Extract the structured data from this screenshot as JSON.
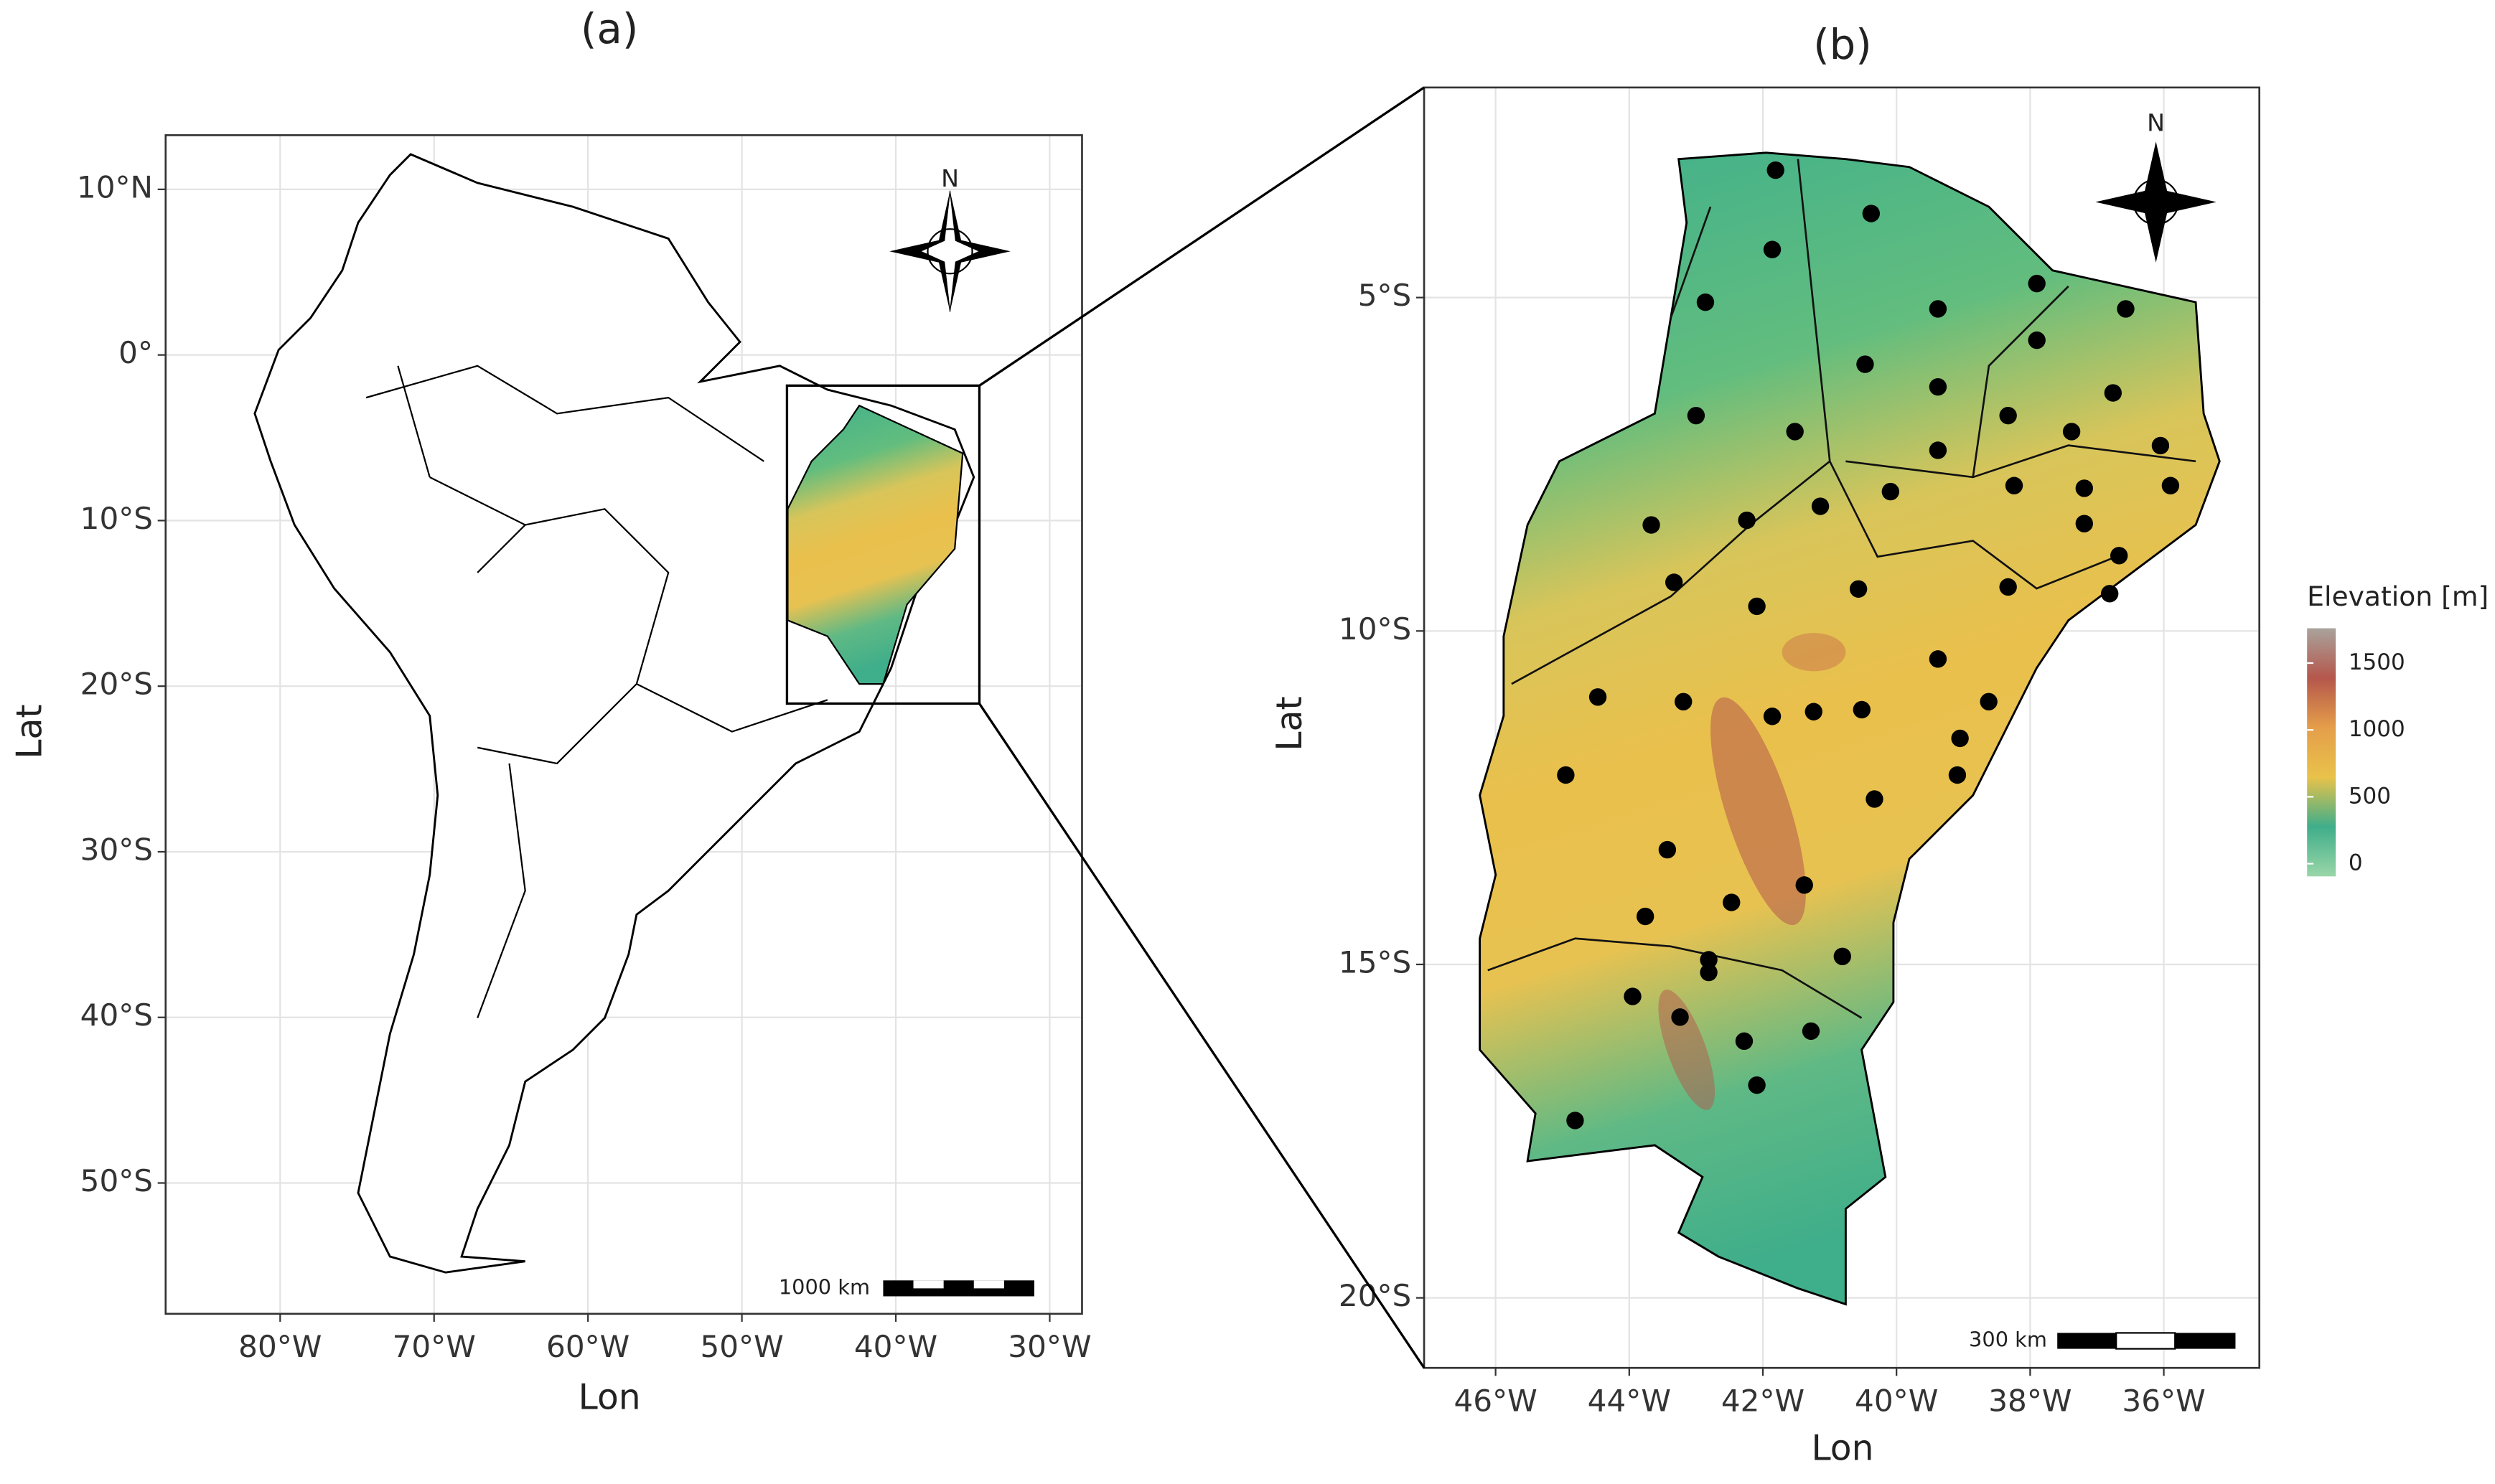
{
  "chart_data": [
    {
      "type": "map",
      "title": "(a)",
      "x_label": "Lon",
      "y_label": "Lat",
      "xlim": [
        -87.44,
        -27.9
      ],
      "ylim": [
        -57.9,
        13.27
      ],
      "xticks": [
        {
          "value": -80,
          "label": "80°W"
        },
        {
          "value": -70,
          "label": "70°W"
        },
        {
          "value": -60,
          "label": "60°W"
        },
        {
          "value": -50,
          "label": "50°W"
        },
        {
          "value": -40,
          "label": "40°W"
        },
        {
          "value": -30,
          "label": "30°W"
        }
      ],
      "yticks": [
        {
          "value": 10,
          "label": "10°N"
        },
        {
          "value": 0,
          "label": "0°"
        },
        {
          "value": -10,
          "label": "10°S"
        },
        {
          "value": -20,
          "label": "20°S"
        },
        {
          "value": -30,
          "label": "30°S"
        },
        {
          "value": -40,
          "label": "40°S"
        },
        {
          "value": -50,
          "label": "50°S"
        }
      ],
      "grid": true,
      "north_label": "N",
      "scale_bar_label": "1000 km"
    },
    {
      "type": "map",
      "title": "(b)",
      "x_label": "Lon",
      "y_label": "Lat",
      "xlim": [
        -47.07,
        -34.57
      ],
      "ylim": [
        -21.05,
        -1.85
      ],
      "xticks": [
        {
          "value": -46,
          "label": "46°W"
        },
        {
          "value": -44,
          "label": "44°W"
        },
        {
          "value": -42,
          "label": "42°W"
        },
        {
          "value": -40,
          "label": "40°W"
        },
        {
          "value": -38,
          "label": "38°W"
        },
        {
          "value": -36,
          "label": "36°W"
        }
      ],
      "yticks": [
        {
          "value": -5,
          "label": "5°S"
        },
        {
          "value": -10,
          "label": "10°S"
        },
        {
          "value": -15,
          "label": "15°S"
        },
        {
          "value": -20,
          "label": "20°S"
        }
      ],
      "grid": true,
      "north_label": "N",
      "scale_bar_label": "300 km",
      "stations": {
        "lon": [
          -41.81,
          -40.38,
          -41.86,
          -42.86,
          -39.38,
          -37.9,
          -36.57,
          -40.47,
          -37.9,
          -39.38,
          -43.0,
          -41.52,
          -38.33,
          -36.76,
          -37.38,
          -36.05,
          -39.38,
          -38.24,
          -37.19,
          -35.9,
          -40.09,
          -41.14,
          -42.24,
          -43.67,
          -37.19,
          -36.67,
          -43.33,
          -42.09,
          -40.57,
          -38.33,
          -36.81,
          -39.38,
          -44.47,
          -43.19,
          -38.62,
          -41.86,
          -41.24,
          -40.52,
          -39.05,
          -44.95,
          -40.33,
          -39.09,
          -43.43,
          -41.38,
          -42.47,
          -43.76,
          -42.81,
          -42.81,
          -40.81,
          -43.95,
          -43.24,
          -41.28,
          -42.28,
          -42.09,
          -44.81
        ],
        "lat": [
          -3.09,
          -3.74,
          -4.28,
          -5.07,
          -5.17,
          -4.79,
          -5.17,
          -6.0,
          -5.64,
          -6.34,
          -6.77,
          -7.01,
          -6.77,
          -6.43,
          -7.01,
          -7.22,
          -7.29,
          -7.82,
          -7.86,
          -7.82,
          -7.91,
          -8.13,
          -8.34,
          -8.41,
          -8.39,
          -8.87,
          -9.27,
          -9.63,
          -9.37,
          -9.34,
          -9.44,
          -10.42,
          -10.99,
          -11.06,
          -11.06,
          -11.28,
          -11.21,
          -11.18,
          -11.61,
          -12.16,
          -12.52,
          -12.16,
          -13.28,
          -13.81,
          -14.07,
          -14.28,
          -14.93,
          -15.12,
          -14.88,
          -15.48,
          -15.79,
          -16.0,
          -16.15,
          -16.81,
          -17.34
        ]
      },
      "legend": {
        "title": "Elevation [m]",
        "ticks": [
          0,
          500,
          1000,
          1500
        ],
        "range": [
          -95,
          1760
        ],
        "colors": [
          "#9ad6a8",
          "#3fae8a",
          "#e9c24a",
          "#e49e4a",
          "#b5574c",
          "#a9a39c"
        ]
      }
    }
  ]
}
